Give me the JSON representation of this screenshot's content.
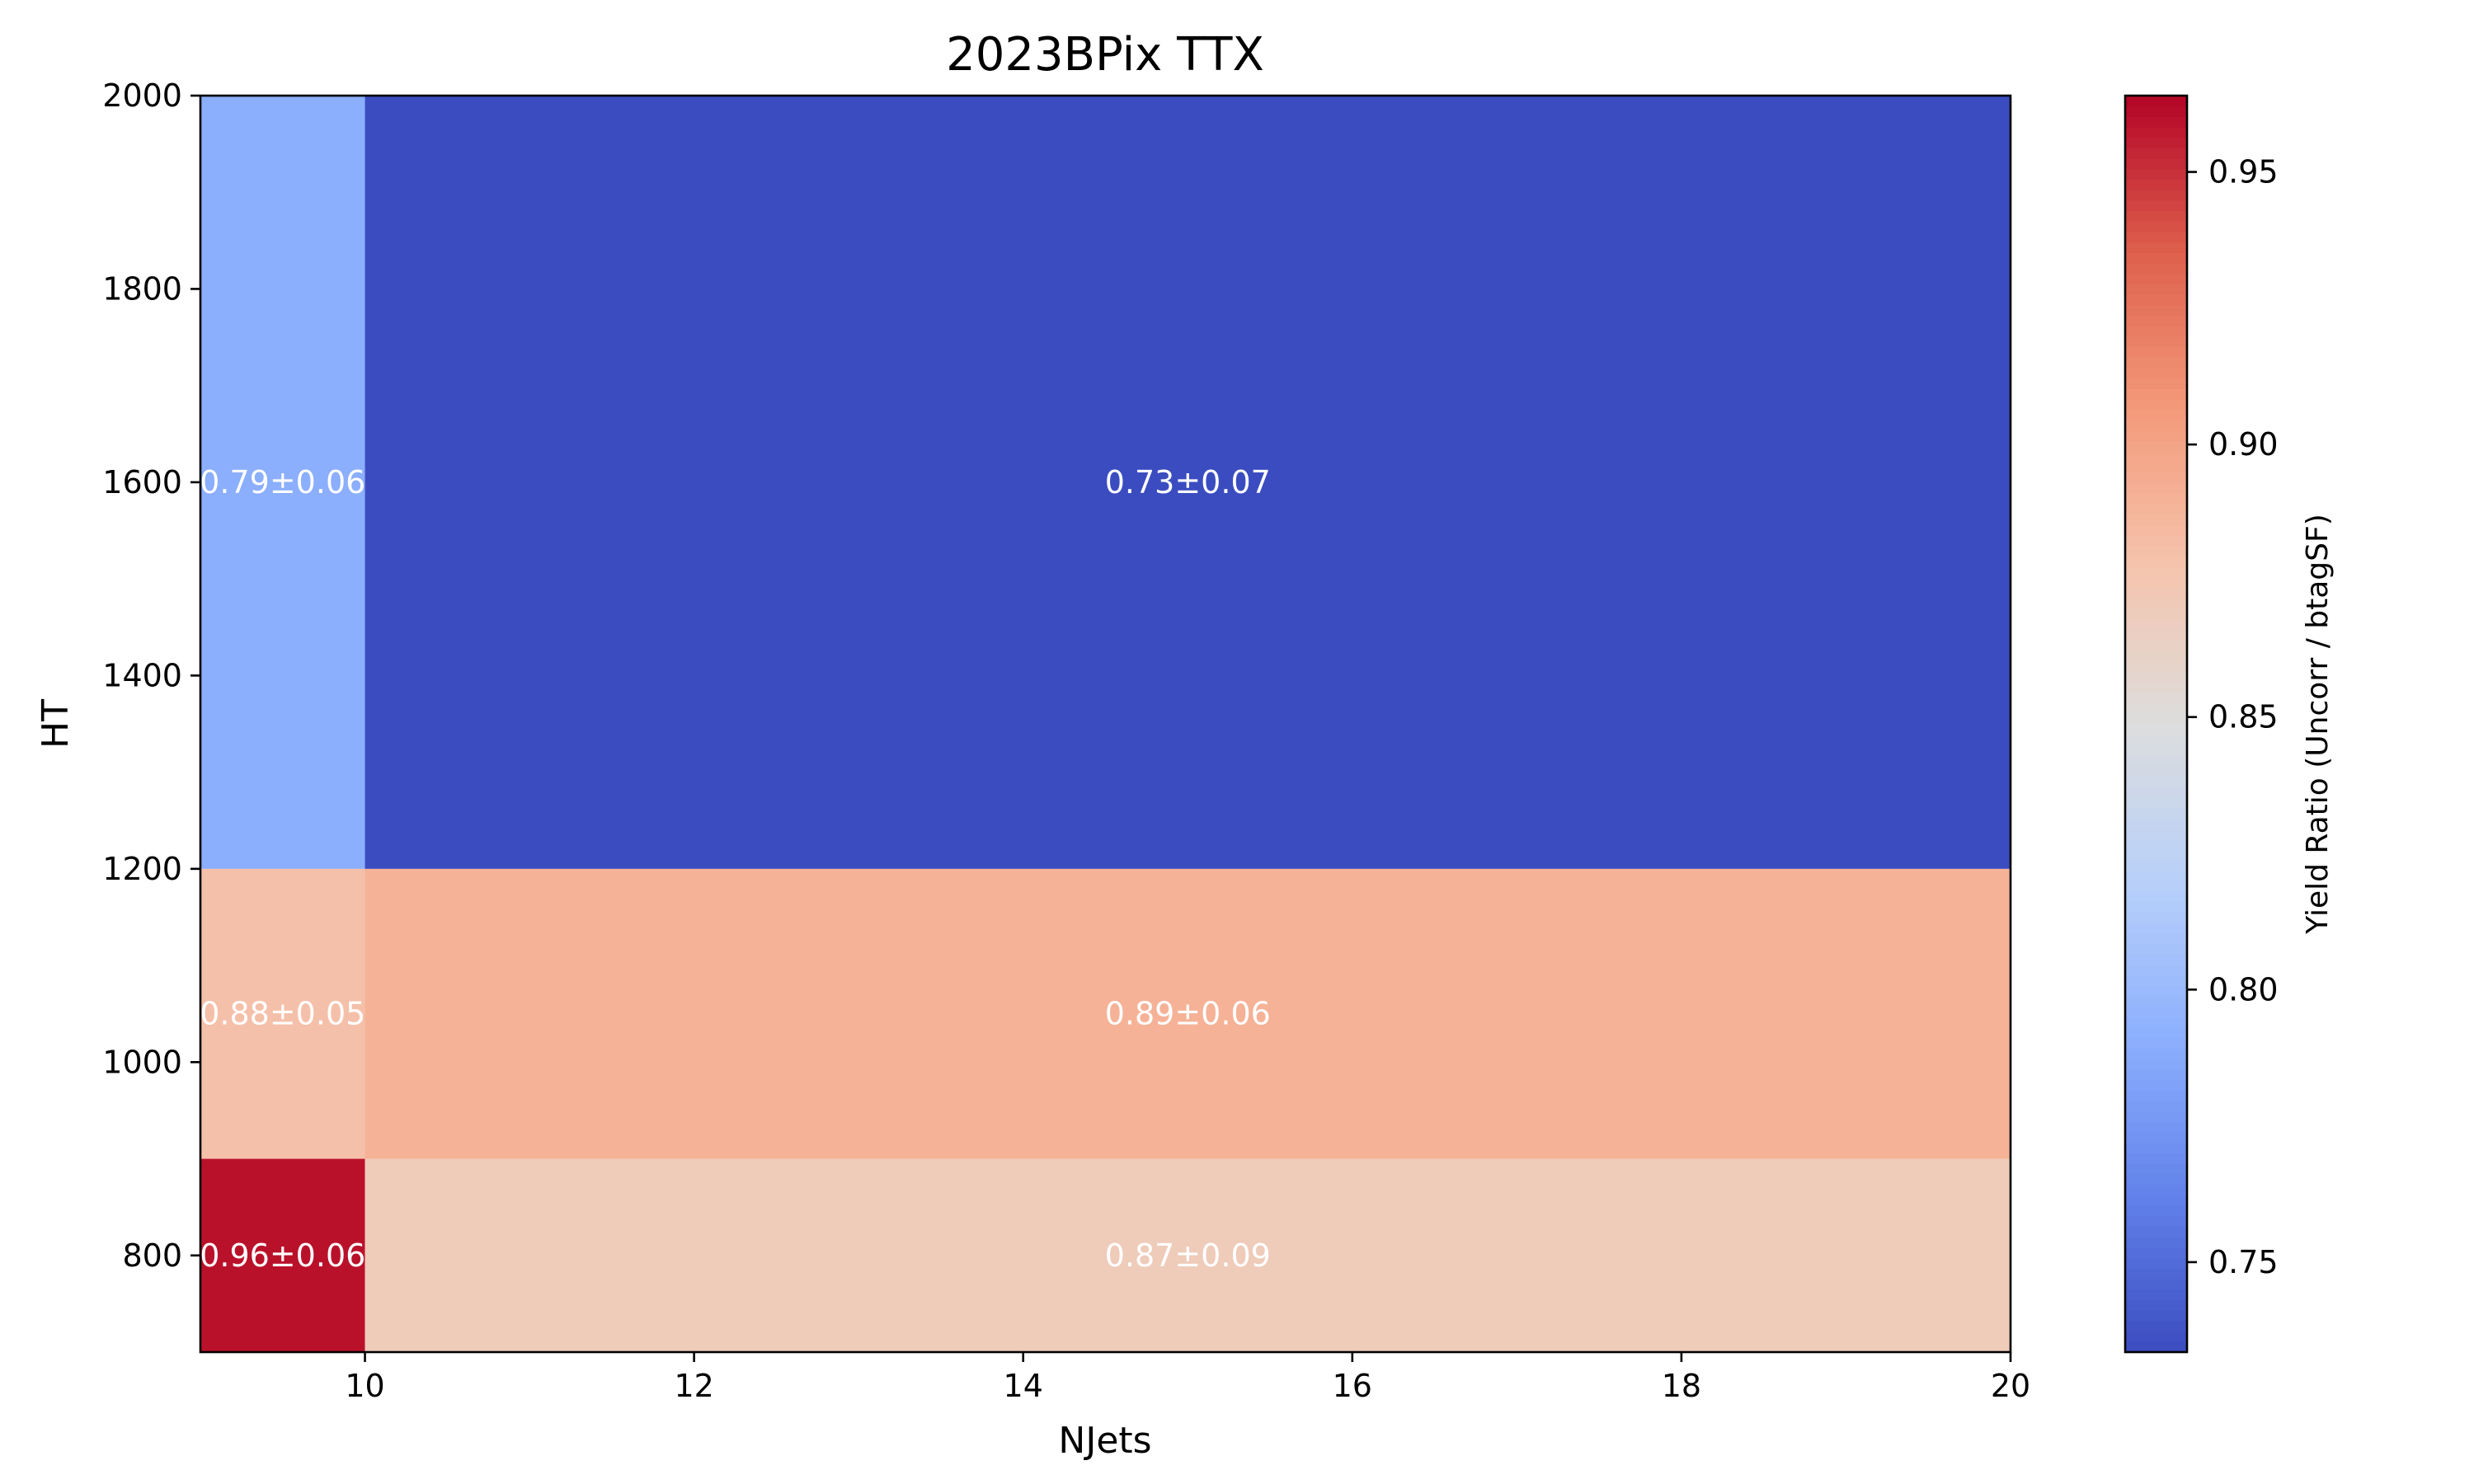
{
  "chart_data": {
    "type": "heatmap",
    "title": "2023BPix TTX",
    "xlabel": "NJets",
    "ylabel": "HT",
    "colorbar_label": "Yield Ratio (Uncorr / btagSF)",
    "colormap": "coolwarm",
    "color_range": [
      0.7335,
      0.964
    ],
    "xlim": [
      9,
      20
    ],
    "ylim": [
      700,
      2000
    ],
    "x_ticks": [
      10,
      12,
      14,
      16,
      18,
      20
    ],
    "y_ticks": [
      800,
      1000,
      1200,
      1400,
      1600,
      1800,
      2000
    ],
    "colorbar_ticks": [
      0.75,
      0.8,
      0.85,
      0.9,
      0.95
    ],
    "x_bins": [
      [
        9,
        10
      ],
      [
        10,
        20
      ]
    ],
    "y_bins": [
      [
        700,
        900
      ],
      [
        900,
        1200
      ],
      [
        1200,
        2000
      ]
    ],
    "cells": [
      {
        "x": [
          9,
          10
        ],
        "y": [
          700,
          900
        ],
        "value": 0.96,
        "label": "0.96±0.06"
      },
      {
        "x": [
          10,
          20
        ],
        "y": [
          700,
          900
        ],
        "value": 0.87,
        "label": "0.87±0.09"
      },
      {
        "x": [
          9,
          10
        ],
        "y": [
          900,
          1200
        ],
        "value": 0.88,
        "label": "0.88±0.05"
      },
      {
        "x": [
          10,
          20
        ],
        "y": [
          900,
          1200
        ],
        "value": 0.89,
        "label": "0.89±0.06"
      },
      {
        "x": [
          9,
          10
        ],
        "y": [
          1200,
          2000
        ],
        "value": 0.79,
        "label": "0.79±0.06"
      },
      {
        "x": [
          10,
          20
        ],
        "y": [
          1200,
          2000
        ],
        "value": 0.73,
        "label": "0.73±0.07"
      }
    ]
  }
}
